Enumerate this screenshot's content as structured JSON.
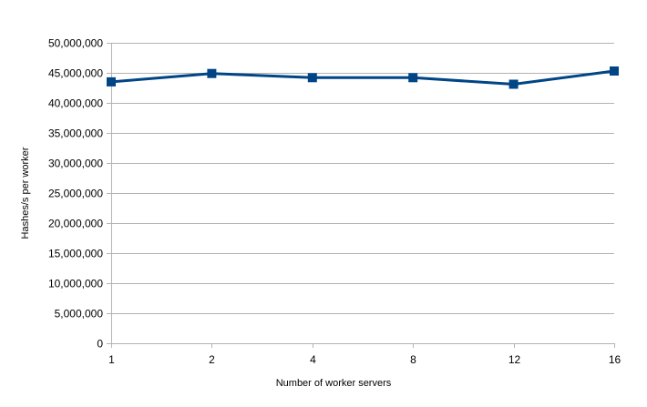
{
  "chart_data": {
    "type": "line",
    "title": "",
    "xlabel": "Number of worker servers",
    "ylabel": "Hashes/s per worker",
    "categories": [
      "1",
      "2",
      "4",
      "8",
      "12",
      "16"
    ],
    "series": [
      {
        "values": [
          43500000,
          44900000,
          44200000,
          44200000,
          43100000,
          45300000
        ]
      }
    ],
    "ylim": [
      0,
      50000000
    ],
    "yticks": [
      "0",
      "5,000,000",
      "10,000,000",
      "15,000,000",
      "20,000,000",
      "25,000,000",
      "30,000,000",
      "35,000,000",
      "40,000,000",
      "45,000,000",
      "50,000,000"
    ],
    "grid": true,
    "legend": "none",
    "colors": {
      "series": "#004586",
      "grid": "#b3b3b3",
      "axis": "#b3b3b3"
    }
  }
}
